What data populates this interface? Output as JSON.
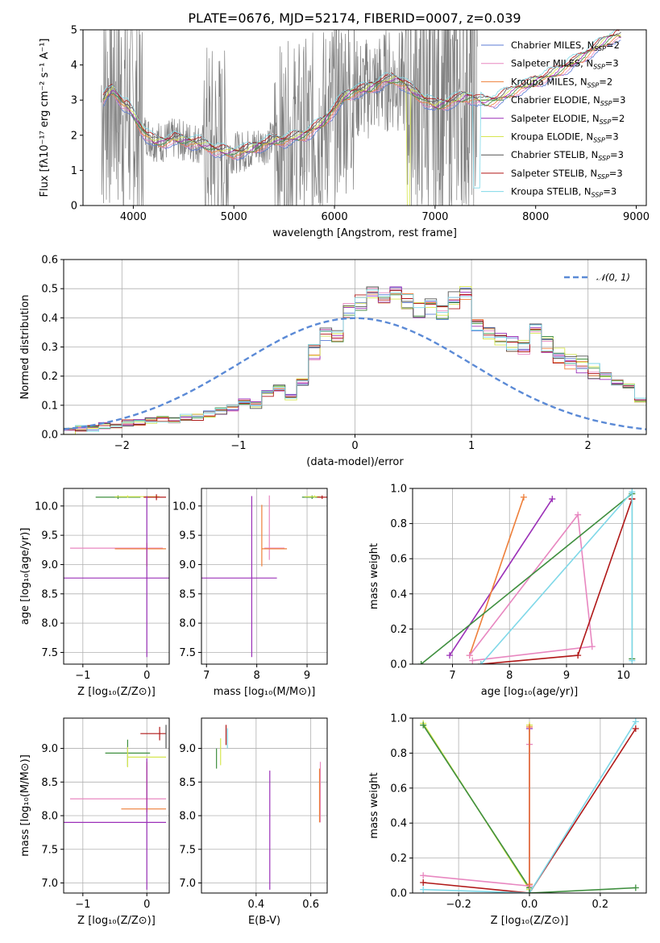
{
  "title": "PLATE=0676, MJD=52174, FIBERID=0007, z=0.039",
  "colors": {
    "chabrier_miles": "#5b7bd6",
    "salpeter_miles": "#e887c0",
    "kroupa_miles": "#ee7f3a",
    "chabrier_elodie": "#3f8f3f",
    "salpeter_elodie": "#9b30b8",
    "kroupa_elodie": "#d6e650",
    "chabrier_stelib": "#555555",
    "salpeter_stelib": "#b01818",
    "kroupa_stelib": "#7fd8e8",
    "data": "#808080",
    "gaussian": "#5b8ad6"
  },
  "chart_data": [
    {
      "type": "line",
      "title": "PLATE=0676, MJD=52174, FIBERID=0007, z=0.039",
      "xlabel": "wavelength [Angstrom, rest frame]",
      "ylabel": "Flux [fλ10⁻¹⁷ erg cm⁻² s⁻¹ A⁻¹]",
      "xlim": [
        3500,
        9100
      ],
      "ylim": [
        0,
        5
      ],
      "xticks": [
        "4000",
        "5000",
        "6000",
        "7000",
        "8000",
        "9000"
      ],
      "yticks": [
        "0",
        "1",
        "2",
        "3",
        "4",
        "5"
      ],
      "legend_position": "top-right",
      "model_trend": {
        "x": [
          3700,
          3750,
          3800,
          3850,
          3900,
          3950,
          4000,
          4100,
          4200,
          4300,
          4400,
          4500,
          4600,
          4700,
          4800,
          4900,
          5000,
          5100,
          5200,
          5300,
          5400,
          5500,
          5600,
          5700,
          5800,
          5900,
          6000,
          6100,
          6200,
          6300,
          6400,
          6500,
          6600,
          6700,
          6800,
          6900,
          7000,
          7100,
          7200,
          7300,
          7400,
          7500,
          7600,
          7700,
          7800,
          7900,
          8000,
          8100,
          8200,
          8300,
          8400,
          8500,
          8600,
          8700,
          8800
        ],
        "y": [
          3.0,
          3.2,
          3.3,
          3.1,
          2.9,
          2.8,
          2.6,
          2.1,
          1.85,
          1.8,
          1.9,
          1.85,
          1.8,
          1.75,
          1.6,
          1.55,
          1.5,
          1.55,
          1.65,
          1.75,
          1.85,
          1.85,
          1.95,
          2.0,
          2.2,
          2.4,
          2.75,
          3.1,
          3.25,
          3.3,
          3.4,
          3.55,
          3.6,
          3.45,
          3.2,
          3.0,
          2.85,
          2.9,
          3.0,
          3.1,
          3.05,
          2.95,
          3.0,
          3.15,
          3.3,
          3.4,
          3.55,
          3.65,
          3.8,
          3.95,
          4.1,
          4.3,
          4.5,
          4.7,
          4.85
        ]
      },
      "series": [
        {
          "name": "Chabrier MILES, N",
          "sub": "SSP",
          "eq": "=2",
          "color": "#5b7bd6"
        },
        {
          "name": "Salpeter MILES, N",
          "sub": "SSP",
          "eq": "=3",
          "color": "#e887c0"
        },
        {
          "name": "Kroupa MILES, N",
          "sub": "SSP",
          "eq": "=2",
          "color": "#ee7f3a"
        },
        {
          "name": "Chabrier ELODIE, N",
          "sub": "SSP",
          "eq": "=3",
          "color": "#3f8f3f"
        },
        {
          "name": "Salpeter ELODIE, N",
          "sub": "SSP",
          "eq": "=2",
          "color": "#9b30b8"
        },
        {
          "name": "Kroupa ELODIE, N",
          "sub": "SSP",
          "eq": "=3",
          "color": "#d6e650"
        },
        {
          "name": "Chabrier STELIB, N",
          "sub": "SSP",
          "eq": "=3",
          "color": "#555555"
        },
        {
          "name": "Salpeter STELIB, N",
          "sub": "SSP",
          "eq": "=3",
          "color": "#b01818"
        },
        {
          "name": "Kroupa STELIB, N",
          "sub": "SSP",
          "eq": "=3",
          "color": "#7fd8e8"
        }
      ]
    },
    {
      "type": "line",
      "xlabel": "(data-model)/error",
      "ylabel": "Normed distribution",
      "xlim": [
        -2.5,
        2.5
      ],
      "ylim": [
        0,
        0.6
      ],
      "xticks": [
        "−2",
        "−1",
        "0",
        "1",
        "2"
      ],
      "yticks": [
        "0.0",
        "0.1",
        "0.2",
        "0.3",
        "0.4",
        "0.5",
        "0.6"
      ],
      "legend": "𝒩(0, 1)",
      "legend_position": "top-right",
      "histogram": {
        "bin_width": 0.1,
        "x_start": -2.5,
        "values": [
          0.01,
          0.02,
          0.02,
          0.03,
          0.03,
          0.04,
          0.04,
          0.05,
          0.05,
          0.05,
          0.06,
          0.06,
          0.07,
          0.08,
          0.09,
          0.11,
          0.1,
          0.14,
          0.16,
          0.13,
          0.18,
          0.28,
          0.35,
          0.33,
          0.42,
          0.45,
          0.48,
          0.47,
          0.49,
          0.46,
          0.43,
          0.44,
          0.42,
          0.46,
          0.48,
          0.38,
          0.35,
          0.33,
          0.31,
          0.3,
          0.36,
          0.31,
          0.27,
          0.25,
          0.24,
          0.22,
          0.2,
          0.18,
          0.17,
          0.12,
          0.13,
          0.14,
          0.1,
          0.09,
          0.07,
          0.06,
          0.05,
          0.04,
          0.03,
          0.03
        ]
      }
    },
    {
      "type": "scatter",
      "xlabel": "Z [log₁₀(Z/Z⊙)]",
      "ylabel": "age  [log₁₀(age/yr)]",
      "xlim": [
        -1.3,
        0.35
      ],
      "ylim": [
        7.3,
        10.3
      ],
      "xticks": [
        "−1",
        "0"
      ],
      "yticks": [
        "7.5",
        "8.0",
        "8.5",
        "9.0",
        "9.5",
        "10.0"
      ],
      "points": [
        {
          "x": -0.45,
          "y": 10.15,
          "xerr": [
            0.35,
            0.35
          ],
          "yerr": [
            0.03,
            0.03
          ],
          "color": "#3f8f3f"
        },
        {
          "x": -0.3,
          "y": 10.16,
          "xerr": [
            0.2,
            0.5
          ],
          "yerr": [
            0.02,
            0.02
          ],
          "color": "#d6e650"
        },
        {
          "x": 0.15,
          "y": 10.15,
          "xerr": [
            0.2,
            0.15
          ],
          "yerr": [
            0.05,
            0.05
          ],
          "color": "#b01818"
        },
        {
          "x": 0.0,
          "y": 9.28,
          "xerr": [
            1.2,
            0.25
          ],
          "yerr": [
            0.05,
            0.05
          ],
          "color": "#e887c0"
        },
        {
          "x": 0.0,
          "y": 9.27,
          "xerr": [
            0.5,
            0.3
          ],
          "yerr": [
            0.3,
            0.1
          ],
          "color": "#ee7f3a"
        },
        {
          "x": 0.0,
          "y": 8.77,
          "xerr": [
            1.3,
            0.35
          ],
          "yerr": [
            1.35,
            1.4
          ],
          "color": "#9b30b8"
        }
      ]
    },
    {
      "type": "scatter",
      "xlabel": "mass [log₁₀(M/M⊙)]",
      "ylabel": "",
      "xlim": [
        6.9,
        9.4
      ],
      "ylim": [
        7.3,
        10.3
      ],
      "xticks": [
        "7",
        "8",
        "9"
      ],
      "yticks": [
        "7.5",
        "8.0",
        "8.5",
        "9.0",
        "9.5",
        "10.0"
      ],
      "points": [
        {
          "x": 9.1,
          "y": 10.15,
          "xerr": [
            0.2,
            0.2
          ],
          "yerr": [
            0.03,
            0.03
          ],
          "color": "#3f8f3f"
        },
        {
          "x": 9.15,
          "y": 10.16,
          "xerr": [
            0.2,
            0.1
          ],
          "yerr": [
            0.02,
            0.02
          ],
          "color": "#d6e650"
        },
        {
          "x": 9.3,
          "y": 10.15,
          "xerr": [
            0.1,
            0.1
          ],
          "yerr": [
            0.03,
            0.03
          ],
          "color": "#b01818"
        },
        {
          "x": 8.25,
          "y": 9.28,
          "xerr": [
            0.1,
            0.3
          ],
          "yerr": [
            0.2,
            0.9
          ],
          "color": "#e887c0"
        },
        {
          "x": 8.1,
          "y": 9.27,
          "xerr": [
            0.0,
            0.5
          ],
          "yerr": [
            0.3,
            0.75
          ],
          "color": "#ee7f3a"
        },
        {
          "x": 7.9,
          "y": 8.77,
          "xerr": [
            1.0,
            0.5
          ],
          "yerr": [
            1.35,
            1.4
          ],
          "color": "#9b30b8"
        }
      ]
    },
    {
      "type": "line",
      "xlabel": "age  [log₁₀(age/yr)]",
      "ylabel": "mass weight",
      "xlim": [
        6.3,
        10.4
      ],
      "ylim": [
        0,
        1
      ],
      "xticks": [
        "7",
        "8",
        "9",
        "10"
      ],
      "yticks": [
        "0.0",
        "0.2",
        "0.4",
        "0.6",
        "0.8",
        "1.0"
      ],
      "series": [
        {
          "x": [
            6.95,
            8.75
          ],
          "y": [
            0.05,
            0.94
          ],
          "color": "#9b30b8"
        },
        {
          "x": [
            7.3,
            8.25
          ],
          "y": [
            0.05,
            0.95
          ],
          "color": "#ee7f3a"
        },
        {
          "x": [
            7.35,
            9.45,
            9.2,
            7.3
          ],
          "y": [
            0.02,
            0.1,
            0.85,
            0.05
          ],
          "color": "#e887c0"
        },
        {
          "x": [
            6.45,
            10.15,
            10.15
          ],
          "y": [
            0.0,
            0.97,
            0.03
          ],
          "color": "#3f8f3f"
        },
        {
          "x": [
            7.5,
            9.2,
            10.15,
            10.15
          ],
          "y": [
            0.0,
            0.05,
            0.94,
            0.94
          ],
          "color": "#b01818"
        },
        {
          "x": [
            7.5,
            10.15,
            10.15
          ],
          "y": [
            0.0,
            0.98,
            0.02
          ],
          "color": "#7fd8e8"
        }
      ]
    },
    {
      "type": "scatter",
      "xlabel": "Z [log₁₀(Z/Z⊙)]",
      "ylabel": "mass [log₁₀(M/M⊙)]",
      "xlim": [
        -1.3,
        0.35
      ],
      "ylim": [
        6.85,
        9.45
      ],
      "xticks": [
        "−1",
        "0"
      ],
      "yticks": [
        "7.0",
        "7.5",
        "8.0",
        "8.5",
        "9.0"
      ],
      "points": [
        {
          "x": -0.3,
          "y": 8.93,
          "xerr": [
            0.35,
            0.35
          ],
          "yerr": [
            0.2,
            0.2
          ],
          "color": "#3f8f3f"
        },
        {
          "x": -0.3,
          "y": 8.87,
          "xerr": [
            0.0,
            0.6
          ],
          "yerr": [
            0.15,
            0.15
          ],
          "color": "#d6e650"
        },
        {
          "x": 0.2,
          "y": 9.22,
          "xerr": [
            0.3,
            0.1
          ],
          "yerr": [
            0.1,
            0.1
          ],
          "color": "#b01818"
        },
        {
          "x": 0.3,
          "y": 9.2,
          "xerr": [
            0.0,
            0.0
          ],
          "yerr": [
            0.2,
            0.15
          ],
          "color": "#555555"
        },
        {
          "x": 0.0,
          "y": 8.25,
          "xerr": [
            1.2,
            0.3
          ],
          "yerr": [
            0.1,
            0.5
          ],
          "color": "#e887c0"
        },
        {
          "x": 0.0,
          "y": 8.1,
          "xerr": [
            0.4,
            0.3
          ],
          "yerr": [
            0.05,
            0.7
          ],
          "color": "#ee7f3a"
        },
        {
          "x": 0.0,
          "y": 7.9,
          "xerr": [
            1.3,
            0.3
          ],
          "yerr": [
            1.0,
            0.95
          ],
          "color": "#9b30b8"
        }
      ]
    },
    {
      "type": "scatter",
      "xlabel": "E(B-V)",
      "ylabel": "",
      "xlim": [
        0.2,
        0.66
      ],
      "ylim": [
        6.85,
        9.45
      ],
      "xticks": [
        "0.4",
        "0.6"
      ],
      "yticks": [
        "7.0",
        "7.5",
        "8.0",
        "8.5",
        "9.0"
      ],
      "points": [
        {
          "x": 0.255,
          "y": 8.85,
          "xerr": [
            0.0,
            0.0
          ],
          "yerr": [
            0.15,
            0.15
          ],
          "color": "#3f8f3f"
        },
        {
          "x": 0.27,
          "y": 8.95,
          "xerr": [
            0.0,
            0.0
          ],
          "yerr": [
            0.2,
            0.2
          ],
          "color": "#d6e650"
        },
        {
          "x": 0.29,
          "y": 9.2,
          "xerr": [
            0.0,
            0.0
          ],
          "yerr": [
            0.15,
            0.15
          ],
          "color": "#b01818"
        },
        {
          "x": 0.295,
          "y": 9.15,
          "xerr": [
            0.0,
            0.0
          ],
          "yerr": [
            0.15,
            0.15
          ],
          "color": "#7fd8e8"
        },
        {
          "x": 0.45,
          "y": 7.8,
          "xerr": [
            0.0,
            0.0
          ],
          "yerr": [
            0.9,
            0.87
          ],
          "color": "#9b30b8"
        },
        {
          "x": 0.635,
          "y": 8.3,
          "xerr": [
            0.0,
            0.0
          ],
          "yerr": [
            0.4,
            0.5
          ],
          "color": "#e887c0"
        },
        {
          "x": 0.632,
          "y": 8.3,
          "xerr": [
            0.0,
            0.0
          ],
          "yerr": [
            0.4,
            0.4
          ],
          "color": "#ee7f3a"
        }
      ]
    },
    {
      "type": "line",
      "xlabel": "Z [log₁₀(Z/Z⊙)]",
      "ylabel": "mass weight",
      "xlim": [
        -0.33,
        0.33
      ],
      "ylim": [
        0,
        1
      ],
      "xticks": [
        "−0.2",
        "0.0",
        "0.2"
      ],
      "yticks": [
        "0.0",
        "0.2",
        "0.4",
        "0.6",
        "0.8",
        "1.0"
      ],
      "series": [
        {
          "x": [
            -0.3,
            0.0,
            0.0
          ],
          "y": [
            0.97,
            0.02,
            0.96
          ],
          "color": "#d6e650"
        },
        {
          "x": [
            -0.3,
            0.0
          ],
          "y": [
            0.96,
            0.03
          ],
          "color": "#3f8f3f"
        },
        {
          "x": [
            -0.3,
            0.0,
            0.0
          ],
          "y": [
            0.1,
            0.04,
            0.85
          ],
          "color": "#e887c0"
        },
        {
          "x": [
            0.0,
            0.0
          ],
          "y": [
            0.05,
            0.94
          ],
          "color": "#9b30b8"
        },
        {
          "x": [
            0.0,
            0.0
          ],
          "y": [
            0.05,
            0.95
          ],
          "color": "#ee7f3a"
        },
        {
          "x": [
            -0.3,
            0.0,
            0.3
          ],
          "y": [
            0.06,
            0.0,
            0.94
          ],
          "color": "#b01818"
        },
        {
          "x": [
            -0.3,
            0.0,
            0.3
          ],
          "y": [
            0.02,
            0.0,
            0.98
          ],
          "color": "#7fd8e8"
        },
        {
          "x": [
            0.0,
            0.3
          ],
          "y": [
            0.0,
            0.03
          ],
          "color": "#3f8f3f"
        }
      ]
    }
  ]
}
